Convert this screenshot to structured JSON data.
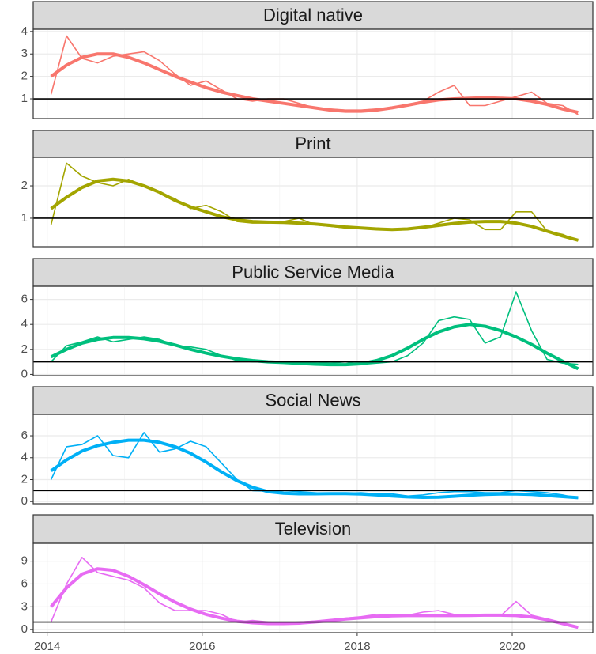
{
  "chart_data": [
    {
      "type": "line",
      "title": "Digital native",
      "x": [
        2014.05,
        2014.25,
        2014.45,
        2014.65,
        2014.85,
        2015.05,
        2015.25,
        2015.45,
        2015.65,
        2015.85,
        2016.05,
        2016.25,
        2016.45,
        2016.65,
        2016.85,
        2017.05,
        2017.25,
        2017.45,
        2017.65,
        2017.85,
        2018.05,
        2018.25,
        2018.45,
        2018.65,
        2018.85,
        2019.05,
        2019.25,
        2019.45,
        2019.65,
        2019.85,
        2020.05,
        2020.25,
        2020.45,
        2020.65,
        2020.85
      ],
      "xlim": [
        2013.82,
        2021.04
      ],
      "xticks": [
        2014,
        2016,
        2018,
        2020
      ],
      "x_minor_ticks": [
        2015,
        2017,
        2019,
        2021
      ],
      "ylim": [
        0.12,
        4.1
      ],
      "yticks": [
        1,
        2,
        3,
        4
      ],
      "hline": 1,
      "grid": true,
      "series": [
        {
          "color": "#f8766d",
          "values": [
            1.2,
            3.8,
            2.8,
            2.6,
            2.9,
            3.0,
            3.1,
            2.7,
            2.1,
            1.6,
            1.8,
            1.4,
            1.0,
            0.9,
            1.0,
            1.0,
            0.8,
            0.6,
            0.55,
            0.5,
            0.5,
            0.55,
            0.6,
            0.75,
            0.9,
            1.3,
            1.6,
            0.7,
            0.7,
            0.9,
            1.1,
            1.3,
            0.8,
            0.7,
            0.3
          ]
        },
        {
          "color": "#f8766d",
          "values": [
            2.0,
            2.5,
            2.85,
            3.0,
            3.0,
            2.85,
            2.6,
            2.3,
            2.0,
            1.75,
            1.5,
            1.3,
            1.15,
            1.0,
            0.9,
            0.8,
            0.7,
            0.6,
            0.5,
            0.45,
            0.45,
            0.5,
            0.6,
            0.72,
            0.85,
            0.95,
            1.0,
            1.03,
            1.05,
            1.03,
            1.0,
            0.9,
            0.75,
            0.55,
            0.4
          ]
        }
      ]
    },
    {
      "type": "line",
      "title": "Print",
      "x": [
        2014.05,
        2014.25,
        2014.45,
        2014.65,
        2014.85,
        2015.05,
        2015.25,
        2015.45,
        2015.65,
        2015.85,
        2016.05,
        2016.25,
        2016.45,
        2016.65,
        2016.85,
        2017.05,
        2017.25,
        2017.45,
        2017.65,
        2017.85,
        2018.05,
        2018.25,
        2018.45,
        2018.65,
        2018.85,
        2019.05,
        2019.25,
        2019.45,
        2019.65,
        2019.85,
        2020.05,
        2020.25,
        2020.45,
        2020.65,
        2020.85
      ],
      "xlim": [
        2013.82,
        2021.04
      ],
      "xticks": [
        2014,
        2016,
        2018,
        2020
      ],
      "x_minor_ticks": [
        2015,
        2017,
        2019,
        2021
      ],
      "ylim": [
        0.12,
        2.88
      ],
      "yticks": [
        1,
        2
      ],
      "hline": 1,
      "grid": true,
      "series": [
        {
          "color": "#a3a500",
          "values": [
            0.8,
            2.7,
            2.3,
            2.1,
            2.0,
            2.2,
            2.0,
            1.8,
            1.6,
            1.3,
            1.4,
            1.2,
            0.9,
            0.85,
            0.85,
            0.9,
            1.0,
            0.8,
            0.75,
            0.7,
            0.7,
            0.7,
            0.65,
            0.65,
            0.7,
            0.85,
            1.0,
            0.95,
            0.65,
            0.65,
            1.2,
            1.2,
            0.6,
            0.5,
            0.3
          ]
        },
        {
          "color": "#a3a500",
          "values": [
            1.3,
            1.65,
            1.95,
            2.15,
            2.2,
            2.15,
            2.0,
            1.8,
            1.55,
            1.35,
            1.2,
            1.05,
            0.95,
            0.9,
            0.88,
            0.87,
            0.85,
            0.82,
            0.78,
            0.73,
            0.7,
            0.67,
            0.65,
            0.67,
            0.72,
            0.78,
            0.84,
            0.88,
            0.9,
            0.9,
            0.85,
            0.75,
            0.6,
            0.45,
            0.32
          ]
        }
      ]
    },
    {
      "type": "line",
      "title": "Public Service Media",
      "x": [
        2014.05,
        2014.25,
        2014.45,
        2014.65,
        2014.85,
        2015.05,
        2015.25,
        2015.45,
        2015.65,
        2015.85,
        2016.05,
        2016.25,
        2016.45,
        2016.65,
        2016.85,
        2017.05,
        2017.25,
        2017.45,
        2017.65,
        2017.85,
        2018.05,
        2018.25,
        2018.45,
        2018.65,
        2018.85,
        2019.05,
        2019.25,
        2019.45,
        2019.65,
        2019.85,
        2020.05,
        2020.25,
        2020.45,
        2020.65,
        2020.85
      ],
      "xlim": [
        2013.82,
        2021.04
      ],
      "xticks": [
        2014,
        2016,
        2018,
        2020
      ],
      "x_minor_ticks": [
        2015,
        2017,
        2019,
        2021
      ],
      "ylim": [
        -0.1,
        7.05
      ],
      "yticks": [
        0,
        2,
        4,
        6
      ],
      "hline": 1,
      "grid": true,
      "series": [
        {
          "color": "#00bf7d",
          "values": [
            1.0,
            2.3,
            2.6,
            3.0,
            2.6,
            2.8,
            3.0,
            2.8,
            2.3,
            2.2,
            2.0,
            1.5,
            1.1,
            1.0,
            1.0,
            0.9,
            1.0,
            1.0,
            0.9,
            1.0,
            0.8,
            0.9,
            1.0,
            1.5,
            2.5,
            4.3,
            4.6,
            4.4,
            2.5,
            3.0,
            6.6,
            3.5,
            1.2,
            0.9,
            0.8
          ]
        },
        {
          "color": "#00bf7d",
          "values": [
            1.4,
            2.0,
            2.5,
            2.8,
            2.95,
            2.95,
            2.85,
            2.65,
            2.35,
            2.0,
            1.7,
            1.45,
            1.25,
            1.1,
            1.0,
            0.95,
            0.88,
            0.82,
            0.78,
            0.78,
            0.85,
            1.1,
            1.5,
            2.1,
            2.8,
            3.4,
            3.8,
            4.0,
            3.85,
            3.5,
            3.0,
            2.4,
            1.7,
            1.05,
            0.45
          ]
        }
      ]
    },
    {
      "type": "line",
      "title": "Social News",
      "x": [
        2014.05,
        2014.25,
        2014.45,
        2014.65,
        2014.85,
        2015.05,
        2015.25,
        2015.45,
        2015.65,
        2015.85,
        2016.05,
        2016.25,
        2016.45,
        2016.65,
        2016.85,
        2017.05,
        2017.25,
        2017.45,
        2017.65,
        2017.85,
        2018.05,
        2018.25,
        2018.45,
        2018.65,
        2018.85,
        2019.05,
        2019.25,
        2019.45,
        2019.65,
        2019.85,
        2020.05,
        2020.25,
        2020.45,
        2020.65,
        2020.85
      ],
      "xlim": [
        2013.82,
        2021.04
      ],
      "xticks": [
        2014,
        2016,
        2018,
        2020
      ],
      "x_minor_ticks": [
        2015,
        2017,
        2019,
        2021
      ],
      "ylim": [
        -0.2,
        7.95
      ],
      "yticks": [
        0,
        2,
        4,
        6
      ],
      "hline": 1,
      "grid": true,
      "series": [
        {
          "color": "#00b0f6",
          "values": [
            2.0,
            5.0,
            5.2,
            6.0,
            4.2,
            4.0,
            6.3,
            4.5,
            4.8,
            5.5,
            5.0,
            3.5,
            2.0,
            1.0,
            0.95,
            1.0,
            0.9,
            0.8,
            0.7,
            0.75,
            0.8,
            0.7,
            0.7,
            0.5,
            0.6,
            0.8,
            0.9,
            0.9,
            0.8,
            0.8,
            1.0,
            0.9,
            0.8,
            0.6,
            0.3
          ]
        },
        {
          "color": "#00b0f6",
          "values": [
            2.8,
            3.8,
            4.6,
            5.1,
            5.4,
            5.6,
            5.6,
            5.4,
            5.0,
            4.4,
            3.6,
            2.7,
            1.9,
            1.3,
            0.9,
            0.75,
            0.7,
            0.7,
            0.72,
            0.72,
            0.68,
            0.6,
            0.5,
            0.42,
            0.38,
            0.4,
            0.48,
            0.58,
            0.65,
            0.68,
            0.68,
            0.65,
            0.55,
            0.45,
            0.35
          ]
        }
      ]
    },
    {
      "type": "line",
      "title": "Television",
      "x": [
        2014.05,
        2014.25,
        2014.45,
        2014.65,
        2014.85,
        2015.05,
        2015.25,
        2015.45,
        2015.65,
        2015.85,
        2016.05,
        2016.25,
        2016.45,
        2016.65,
        2016.85,
        2017.05,
        2017.25,
        2017.45,
        2017.65,
        2017.85,
        2018.05,
        2018.25,
        2018.45,
        2018.65,
        2018.85,
        2019.05,
        2019.25,
        2019.45,
        2019.65,
        2019.85,
        2020.05,
        2020.25,
        2020.45,
        2020.65,
        2020.85
      ],
      "xlim": [
        2013.82,
        2021.04
      ],
      "xticks": [
        2014,
        2016,
        2018,
        2020
      ],
      "x_minor_ticks": [
        2015,
        2017,
        2019,
        2021
      ],
      "ylim": [
        -0.4,
        11.35
      ],
      "yticks": [
        0,
        3,
        6,
        9
      ],
      "hline": 1,
      "grid": true,
      "series": [
        {
          "color": "#e76bf3",
          "values": [
            1.0,
            6.0,
            9.5,
            7.5,
            7.0,
            6.5,
            5.5,
            3.5,
            2.5,
            2.5,
            2.5,
            2.0,
            1.0,
            1.2,
            1.0,
            0.9,
            1.0,
            1.1,
            1.3,
            1.5,
            1.7,
            2.0,
            2.0,
            1.9,
            2.3,
            2.5,
            2.0,
            2.0,
            1.8,
            1.8,
            3.7,
            1.9,
            1.4,
            0.8,
            0.3
          ]
        },
        {
          "color": "#e76bf3",
          "values": [
            3.0,
            5.5,
            7.3,
            8.0,
            7.8,
            7.0,
            5.9,
            4.7,
            3.6,
            2.7,
            2.0,
            1.5,
            1.1,
            0.9,
            0.8,
            0.8,
            0.85,
            1.0,
            1.2,
            1.4,
            1.55,
            1.7,
            1.8,
            1.85,
            1.85,
            1.85,
            1.85,
            1.87,
            1.9,
            1.9,
            1.85,
            1.65,
            1.3,
            0.8,
            0.3
          ]
        }
      ]
    }
  ]
}
